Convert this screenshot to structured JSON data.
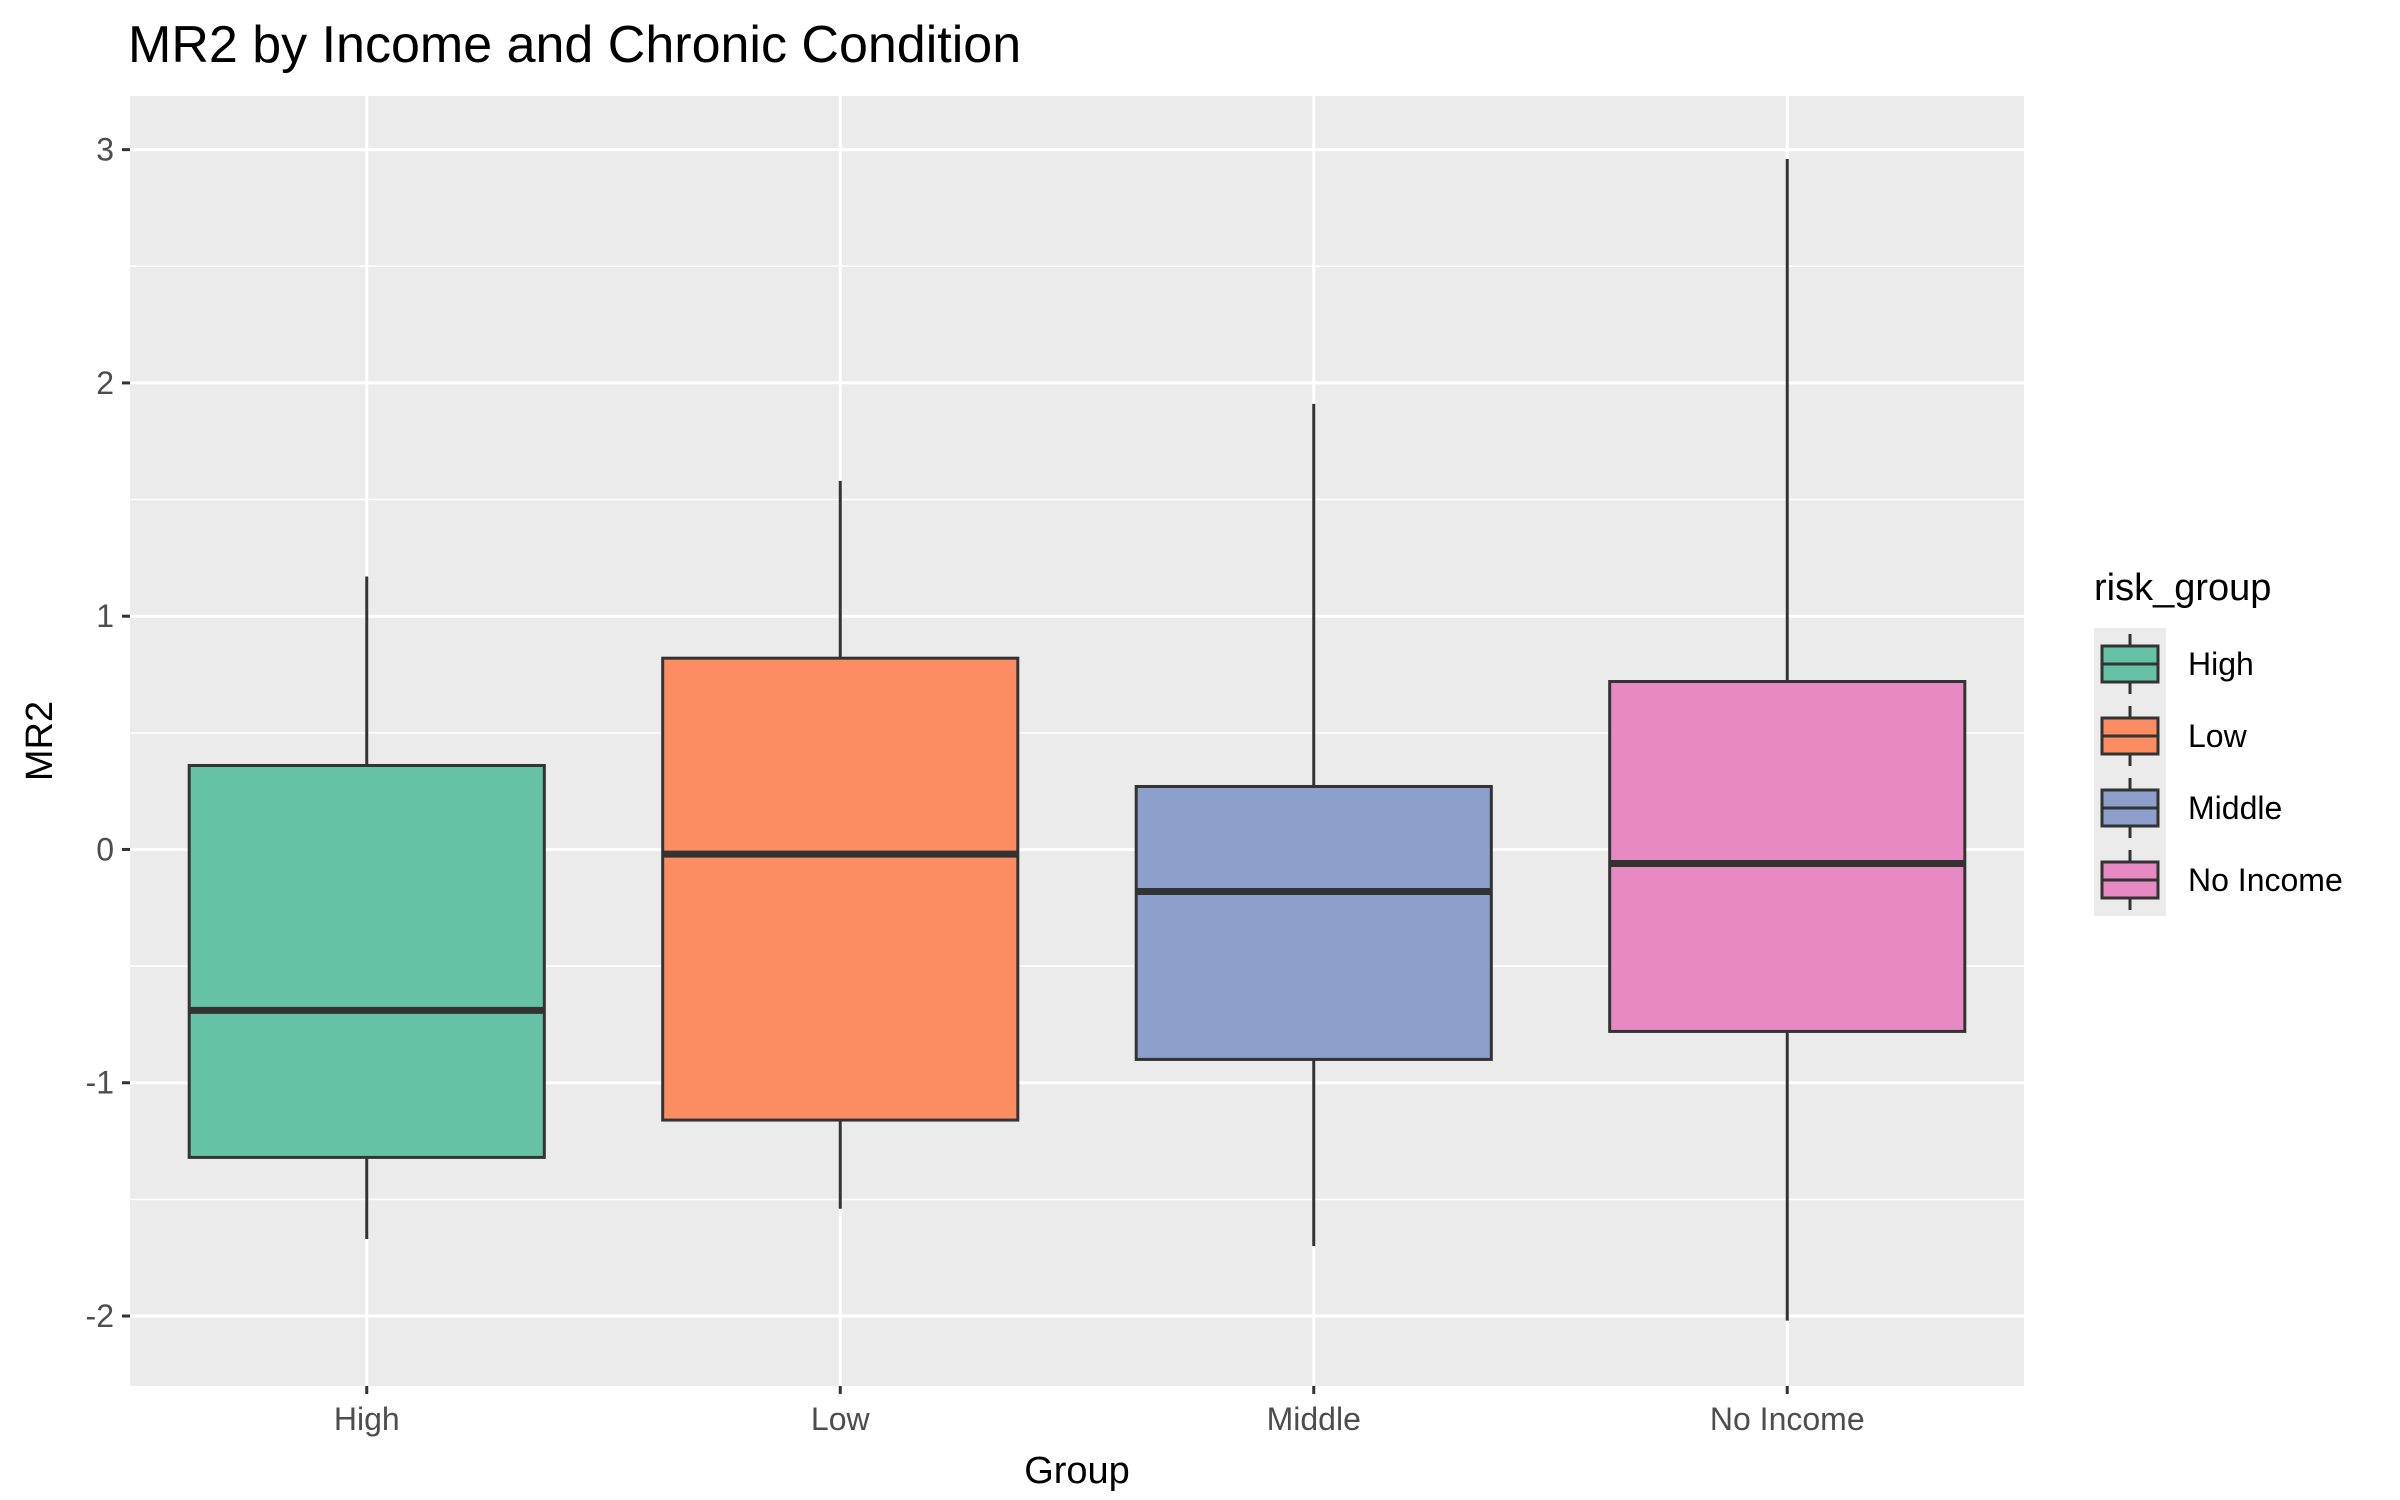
{
  "chart_data": {
    "type": "boxplot",
    "title": "MR2 by Income and Chronic Condition",
    "xlabel": "Group",
    "ylabel": "MR2",
    "ylim": [
      -2.3,
      3.23
    ],
    "yticks": [
      -2,
      -1,
      0,
      1,
      2,
      3
    ],
    "ytick_labels": [
      "-2",
      "-1",
      "0",
      "1",
      "2",
      "3"
    ],
    "grid": true,
    "legend": {
      "title": "risk_group",
      "position": "right"
    },
    "categories": [
      "High",
      "Low",
      "Middle",
      "No Income"
    ],
    "boxes": [
      {
        "name": "High",
        "whisker_low": -1.67,
        "q1": -1.32,
        "median": -0.69,
        "q3": 0.36,
        "whisker_high": 1.17,
        "color": "#66c2a5"
      },
      {
        "name": "Low",
        "whisker_low": -1.54,
        "q1": -1.16,
        "median": -0.02,
        "q3": 0.82,
        "whisker_high": 1.58,
        "color": "#fc8d62"
      },
      {
        "name": "Middle",
        "whisker_low": -1.7,
        "q1": -0.9,
        "median": -0.18,
        "q3": 0.27,
        "whisker_high": 1.91,
        "color": "#8da0cb"
      },
      {
        "name": "No Income",
        "whisker_low": -2.02,
        "q1": -0.78,
        "median": -0.06,
        "q3": 0.72,
        "whisker_high": 2.96,
        "color": "#e78ac3"
      }
    ]
  }
}
